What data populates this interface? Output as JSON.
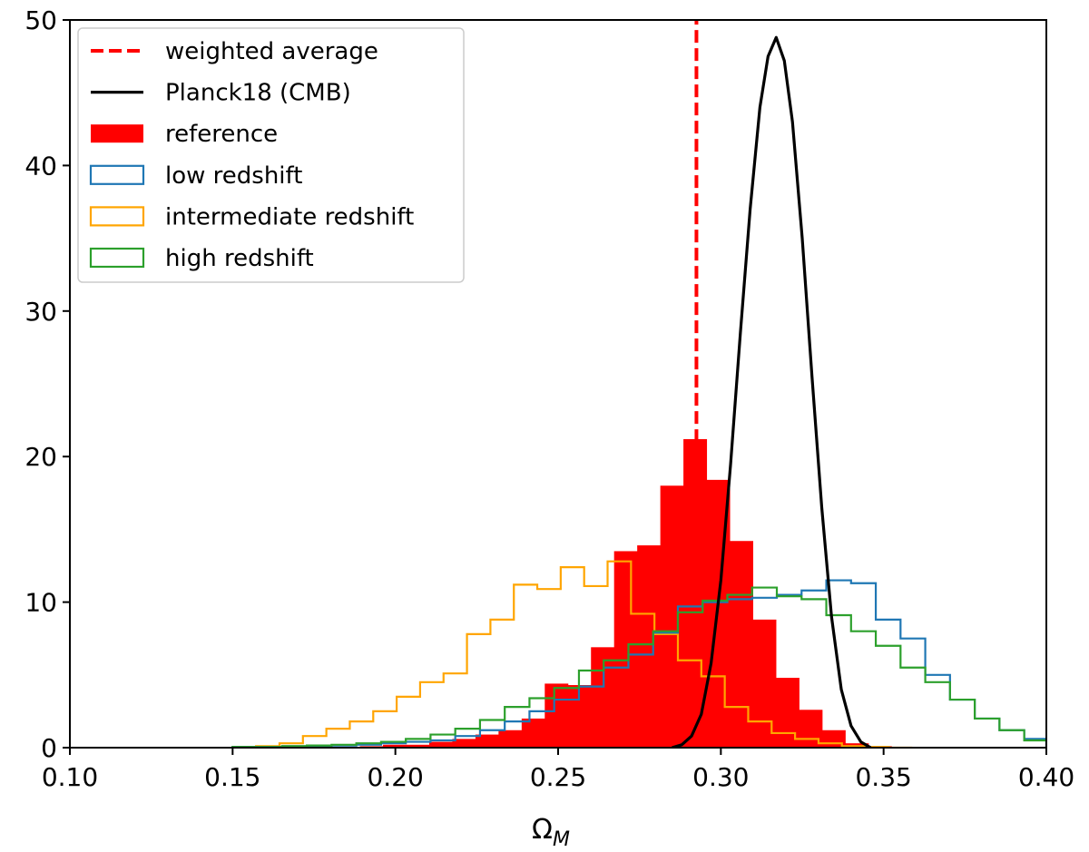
{
  "chart_data": {
    "type": "histogram",
    "title": "",
    "xlabel": "Ω",
    "xlabel_subscript": "M",
    "ylabel": "",
    "xlim": [
      0.1,
      0.4
    ],
    "ylim": [
      0,
      50
    ],
    "xticks": [
      "0.10",
      "0.15",
      "0.20",
      "0.25",
      "0.30",
      "0.35",
      "0.40"
    ],
    "yticks": [
      "0",
      "10",
      "20",
      "30",
      "40",
      "50"
    ],
    "xtick_values": [
      0.1,
      0.15,
      0.2,
      0.25,
      0.3,
      0.35,
      0.4
    ],
    "ytick_values": [
      0,
      10,
      20,
      30,
      40,
      50
    ],
    "legend_position": "top-left",
    "colors": {
      "weighted_average": "#ff0000",
      "planck": "#000000",
      "reference": "#ff0000",
      "low": "#1f77b4",
      "intermediate": "#ffa500",
      "high": "#2ca02c"
    },
    "legend": [
      {
        "key": "weighted_average",
        "label": "weighted average",
        "style": "dashed-line"
      },
      {
        "key": "planck",
        "label": "Planck18 (CMB)",
        "style": "line"
      },
      {
        "key": "reference",
        "label": "reference",
        "style": "filled"
      },
      {
        "key": "low",
        "label": "low redshift",
        "style": "step"
      },
      {
        "key": "intermediate",
        "label": "intermediate redshift",
        "style": "step"
      },
      {
        "key": "high",
        "label": "high redshift",
        "style": "step"
      }
    ],
    "weighted_average": {
      "x": 0.2925,
      "y_from": 21,
      "y_to": 50
    },
    "planck": {
      "x": [
        0.285,
        0.288,
        0.291,
        0.294,
        0.297,
        0.3,
        0.303,
        0.306,
        0.309,
        0.312,
        0.3145,
        0.317,
        0.3195,
        0.322,
        0.325,
        0.328,
        0.331,
        0.334,
        0.337,
        0.34,
        0.343,
        0.346
      ],
      "y": [
        0.0,
        0.2,
        0.8,
        2.3,
        5.8,
        11.5,
        19.5,
        28.5,
        37.0,
        44.0,
        47.5,
        48.8,
        47.2,
        43.0,
        35.0,
        25.5,
        16.5,
        9.0,
        4.0,
        1.5,
        0.4,
        0.0
      ]
    },
    "reference": {
      "bin_edges": [
        0.1891,
        0.1962,
        0.2033,
        0.2104,
        0.2175,
        0.2246,
        0.2317,
        0.2388,
        0.2459,
        0.253,
        0.2601,
        0.2672,
        0.2743,
        0.2814,
        0.2885,
        0.2956,
        0.3027,
        0.3098,
        0.3169,
        0.324,
        0.3311,
        0.3382,
        0.3453,
        0.3524
      ],
      "values": [
        0.1,
        0.2,
        0.2,
        0.4,
        0.6,
        0.9,
        1.2,
        2.0,
        4.4,
        4.3,
        6.9,
        13.5,
        13.9,
        18.0,
        21.2,
        18.4,
        14.2,
        8.8,
        4.8,
        2.6,
        1.2,
        0.3,
        0.1
      ]
    },
    "low": {
      "bin_edges": [
        0.15,
        0.1576,
        0.1652,
        0.1728,
        0.1804,
        0.188,
        0.1956,
        0.2032,
        0.2108,
        0.2184,
        0.226,
        0.2336,
        0.2412,
        0.2488,
        0.2564,
        0.264,
        0.2716,
        0.2792,
        0.2868,
        0.2944,
        0.302,
        0.3096,
        0.3172,
        0.3248,
        0.3324,
        0.34,
        0.3476,
        0.3552,
        0.3628,
        0.3704,
        0.378,
        0.3856,
        0.3932,
        0.4
      ],
      "values": [
        0.05,
        0.05,
        0.1,
        0.1,
        0.15,
        0.2,
        0.3,
        0.4,
        0.5,
        0.8,
        1.2,
        1.8,
        2.5,
        3.3,
        4.2,
        5.5,
        6.4,
        7.9,
        9.7,
        10.0,
        10.2,
        10.3,
        10.5,
        10.8,
        11.5,
        11.3,
        8.8,
        7.5,
        5.0,
        3.3,
        2.0,
        1.2,
        0.6
      ]
    },
    "intermediate": {
      "bin_edges": [
        0.15,
        0.1572,
        0.1644,
        0.1716,
        0.1788,
        0.186,
        0.1932,
        0.2004,
        0.2076,
        0.2148,
        0.222,
        0.2292,
        0.2364,
        0.2436,
        0.2508,
        0.258,
        0.2652,
        0.2724,
        0.2796,
        0.2868,
        0.294,
        0.3012,
        0.3084,
        0.3156,
        0.3228,
        0.33,
        0.3372,
        0.3444,
        0.3516,
        0.3588
      ],
      "values": [
        0.05,
        0.1,
        0.3,
        0.8,
        1.3,
        1.8,
        2.5,
        3.5,
        4.5,
        5.1,
        7.8,
        8.8,
        11.2,
        10.9,
        12.4,
        11.1,
        12.8,
        9.2,
        7.8,
        6.0,
        4.9,
        2.8,
        1.8,
        1.0,
        0.6,
        0.3,
        0.1,
        0.05,
        0.0
      ]
    },
    "high": {
      "bin_edges": [
        0.15,
        0.1576,
        0.1652,
        0.1728,
        0.1804,
        0.188,
        0.1956,
        0.2032,
        0.2108,
        0.2184,
        0.226,
        0.2336,
        0.2412,
        0.2488,
        0.2564,
        0.264,
        0.2716,
        0.2792,
        0.2868,
        0.2944,
        0.302,
        0.3096,
        0.3172,
        0.3248,
        0.3324,
        0.34,
        0.3476,
        0.3552,
        0.3628,
        0.3704,
        0.378,
        0.3856,
        0.3932,
        0.4
      ],
      "values": [
        0.05,
        0.05,
        0.1,
        0.15,
        0.2,
        0.3,
        0.4,
        0.6,
        0.9,
        1.3,
        1.9,
        2.8,
        3.4,
        4.1,
        5.3,
        6.0,
        7.1,
        8.0,
        9.3,
        10.1,
        10.5,
        11.0,
        10.4,
        10.2,
        9.1,
        8.0,
        7.0,
        5.5,
        4.5,
        3.3,
        2.0,
        1.2,
        0.5
      ]
    }
  }
}
